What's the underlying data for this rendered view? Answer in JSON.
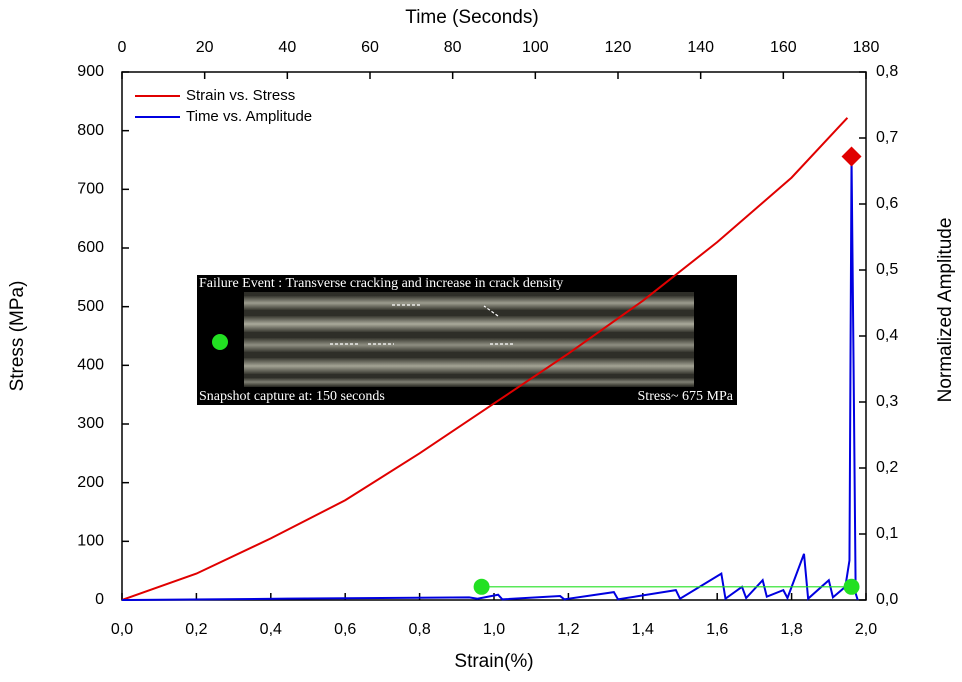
{
  "chart_data": {
    "type": "line",
    "xlabel": "Strain(%)",
    "ylabel": "Stress (MPa)",
    "x2label": "Time (Seconds)",
    "y2label": "Normalized Amplitude",
    "xlim": [
      0,
      2
    ],
    "ylim": [
      0,
      900
    ],
    "x2lim": [
      0,
      180
    ],
    "y2lim": [
      0,
      0.8
    ],
    "xticks": [
      {
        "value": 0,
        "label": "0,0"
      },
      {
        "value": 0.2,
        "label": "0,2"
      },
      {
        "value": 0.4,
        "label": "0,4"
      },
      {
        "value": 0.6,
        "label": "0,6"
      },
      {
        "value": 0.8,
        "label": "0,8"
      },
      {
        "value": 1.0,
        "label": "1,0"
      },
      {
        "value": 1.2,
        "label": "1,2"
      },
      {
        "value": 1.4,
        "label": "1,4"
      },
      {
        "value": 1.6,
        "label": "1,6"
      },
      {
        "value": 1.8,
        "label": "1,8"
      },
      {
        "value": 2.0,
        "label": "2,0"
      }
    ],
    "yticks": [
      0,
      100,
      200,
      300,
      400,
      500,
      600,
      700,
      800,
      900
    ],
    "x2ticks": [
      0,
      20,
      40,
      60,
      80,
      100,
      120,
      140,
      160,
      180
    ],
    "y2ticks": [
      {
        "value": 0,
        "label": "0,0"
      },
      {
        "value": 0.1,
        "label": "0,1"
      },
      {
        "value": 0.2,
        "label": "0,2"
      },
      {
        "value": 0.3,
        "label": "0,3"
      },
      {
        "value": 0.4,
        "label": "0,4"
      },
      {
        "value": 0.5,
        "label": "0,5"
      },
      {
        "value": 0.6,
        "label": "0,6"
      },
      {
        "value": 0.7,
        "label": "0,7"
      },
      {
        "value": 0.8,
        "label": "0,8"
      }
    ],
    "series": [
      {
        "name": "Strain vs. Stress",
        "color": "#e00000",
        "x": [
          0,
          0.2,
          0.4,
          0.6,
          0.8,
          1.0,
          1.2,
          1.4,
          1.6,
          1.8,
          1.95
        ],
        "values": [
          0,
          45,
          105,
          170,
          250,
          335,
          420,
          510,
          610,
          720,
          822
        ]
      },
      {
        "name": "Time vs. Amplitude",
        "color": "#0000e0",
        "axis": "y2",
        "x_axis": "x2",
        "x": [
          0,
          40,
          84,
          86,
          91,
          92,
          106,
          107,
          119,
          120,
          134,
          135,
          145,
          146,
          150,
          151,
          155,
          156,
          160,
          161,
          165,
          166,
          171,
          172,
          175,
          176,
          176.5,
          177,
          177.5,
          178
        ],
        "values": [
          0,
          0.002,
          0.004,
          0.002,
          0.008,
          0.001,
          0.006,
          0.001,
          0.012,
          0.001,
          0.015,
          0.002,
          0.04,
          0.002,
          0.02,
          0.003,
          0.03,
          0.005,
          0.015,
          0.003,
          0.07,
          0.002,
          0.03,
          0.004,
          0.02,
          0.06,
          0.67,
          0.35,
          0.01,
          0
        ]
      }
    ],
    "markers": [
      {
        "shape": "circle",
        "color": "#22e022",
        "axis": "y2",
        "x_axis": "x2",
        "x": [
          87,
          176.5
        ],
        "values": [
          0.02,
          0.02
        ]
      },
      {
        "shape": "diamond",
        "color": "#e00000",
        "axis": "y2",
        "x_axis": "x2",
        "x": [
          176.5
        ],
        "values": [
          0.672
        ]
      }
    ],
    "legend": "upper left",
    "annotations": [
      "Failure Event : Transverse cracking and increase in crack density",
      "Snapshot capture at: 150 seconds",
      "Stress~ 675 MPa"
    ]
  }
}
